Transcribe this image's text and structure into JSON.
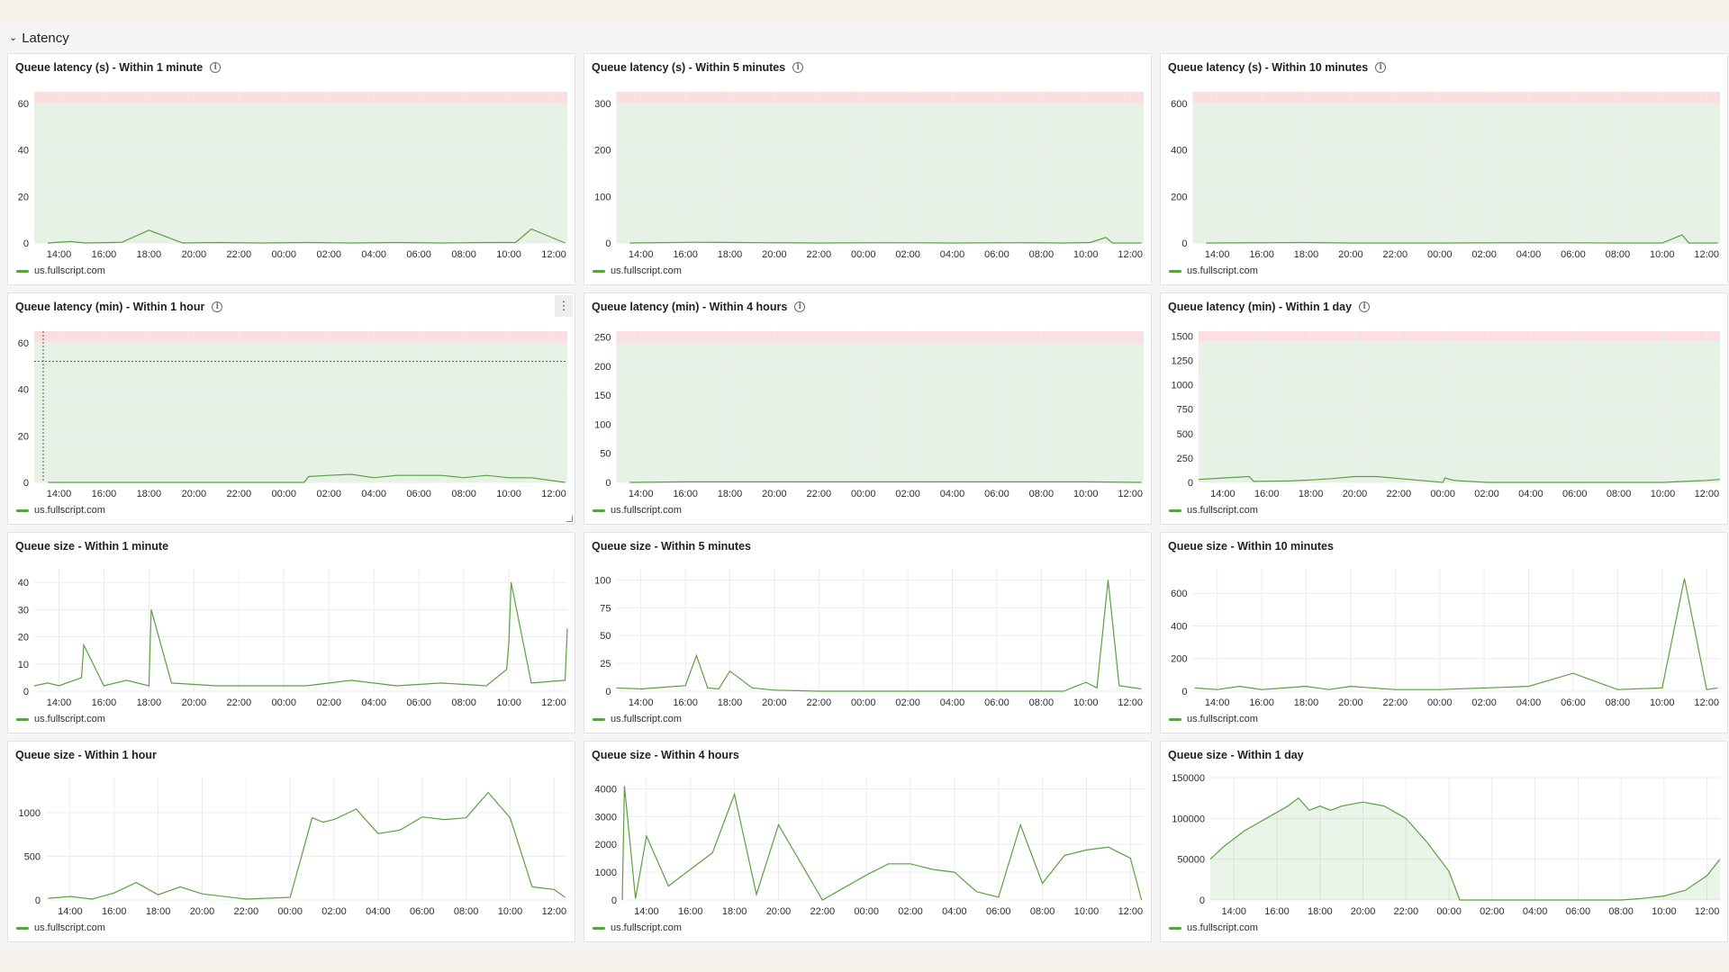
{
  "row": {
    "title": "Latency",
    "icon": "chevron-down-icon"
  },
  "colors": {
    "series": "#5aa13f",
    "threshold_ok": "#e6f2e5",
    "threshold_bad": "#fbdde2",
    "grid": "#ececee"
  },
  "x_ticks": [
    "14:00",
    "16:00",
    "18:00",
    "20:00",
    "22:00",
    "00:00",
    "02:00",
    "04:00",
    "06:00",
    "08:00",
    "10:00",
    "12:00"
  ],
  "panels": [
    {
      "title": "Queue latency (s) - Within 1 minute",
      "info": true,
      "legend": "us.fullscript.com"
    },
    {
      "title": "Queue latency (s) - Within 5 minutes",
      "info": true,
      "legend": "us.fullscript.com"
    },
    {
      "title": "Queue latency (s) - Within 10 minutes",
      "info": true,
      "legend": "us.fullscript.com"
    },
    {
      "title": "Queue latency (min) - Within 1 hour",
      "info": true,
      "legend": "us.fullscript.com"
    },
    {
      "title": "Queue latency (min) - Within 4 hours",
      "info": true,
      "legend": "us.fullscript.com"
    },
    {
      "title": "Queue latency (min) - Within 1 day",
      "info": true,
      "legend": "us.fullscript.com"
    },
    {
      "title": "Queue size - Within 1 minute",
      "info": false,
      "legend": "us.fullscript.com"
    },
    {
      "title": "Queue size - Within 5 minutes",
      "info": false,
      "legend": "us.fullscript.com"
    },
    {
      "title": "Queue size - Within 10 minutes",
      "info": false,
      "legend": "us.fullscript.com"
    },
    {
      "title": "Queue size - Within 1 hour",
      "info": false,
      "legend": "us.fullscript.com"
    },
    {
      "title": "Queue size - Within 4 hours",
      "info": false,
      "legend": "us.fullscript.com"
    },
    {
      "title": "Queue size - Within 1 day",
      "info": false,
      "legend": "us.fullscript.com"
    }
  ],
  "chart_data": [
    {
      "type": "area",
      "series": [
        {
          "name": "us.fullscript.com",
          "x": [
            13.5,
            14.5,
            15.2,
            16.8,
            18.0,
            19.5,
            21,
            23,
            25,
            27,
            29,
            31,
            33,
            34.3,
            35,
            36.5
          ],
          "y": [
            0,
            0.6,
            0,
            0.3,
            5.5,
            0,
            0.2,
            0,
            0.2,
            0,
            0.2,
            0,
            0.2,
            0.2,
            6,
            0
          ]
        }
      ],
      "ylim": [
        0,
        65
      ],
      "yticks": [
        0,
        20,
        40,
        60
      ],
      "thresholds": [
        {
          "from": 0,
          "to": 60,
          "color": "green"
        },
        {
          "from": 60,
          "to": 65,
          "color": "red"
        }
      ]
    },
    {
      "type": "area",
      "series": [
        {
          "name": "us.fullscript.com",
          "x": [
            13.5,
            16.4,
            17.8,
            19.5,
            22,
            25,
            28,
            31,
            33,
            34.2,
            34.9,
            35.2,
            36.5
          ],
          "y": [
            0,
            1.5,
            1.2,
            0.5,
            0,
            0.5,
            0,
            0.5,
            0,
            1,
            12,
            0,
            0
          ]
        }
      ],
      "ylim": [
        0,
        325
      ],
      "yticks": [
        0,
        100,
        200,
        300
      ],
      "thresholds": [
        {
          "from": 0,
          "to": 300,
          "color": "green"
        },
        {
          "from": 300,
          "to": 325,
          "color": "red"
        }
      ]
    },
    {
      "type": "area",
      "series": [
        {
          "name": "us.fullscript.com",
          "x": [
            13.5,
            16.5,
            17.9,
            20,
            24,
            28,
            32,
            34,
            34.9,
            35.2,
            36.5
          ],
          "y": [
            0,
            1,
            2,
            0,
            0,
            1,
            0,
            0,
            35,
            0,
            0
          ]
        }
      ],
      "ylim": [
        0,
        650
      ],
      "yticks": [
        0,
        200,
        400,
        600
      ],
      "thresholds": [
        {
          "from": 0,
          "to": 600,
          "color": "green"
        },
        {
          "from": 600,
          "to": 650,
          "color": "red"
        }
      ]
    },
    {
      "type": "area",
      "series": [
        {
          "name": "us.fullscript.com",
          "x": [
            13.5,
            24.9,
            25.1,
            26,
            27,
            28,
            29,
            30,
            31,
            32,
            33,
            34,
            35,
            36.5
          ],
          "y": [
            0,
            0,
            2.5,
            3,
            3.5,
            2,
            3,
            3,
            3,
            2,
            3,
            2,
            2,
            0
          ]
        }
      ],
      "ylim": [
        0,
        65
      ],
      "yticks": [
        0,
        20,
        40,
        60
      ],
      "thresholds": [
        {
          "from": 0,
          "to": 60,
          "color": "green"
        },
        {
          "from": 60,
          "to": 65,
          "color": "red"
        }
      ]
    },
    {
      "type": "area",
      "series": [
        {
          "name": "us.fullscript.com",
          "x": [
            13.5,
            16,
            18,
            20,
            22,
            24,
            26,
            28,
            30,
            32,
            34,
            36.5
          ],
          "y": [
            0,
            1,
            1,
            1,
            1,
            1,
            1,
            1,
            1,
            1,
            1,
            0
          ]
        }
      ],
      "ylim": [
        0,
        260
      ],
      "yticks": [
        0,
        50,
        100,
        150,
        200,
        250
      ],
      "thresholds": [
        {
          "from": 0,
          "to": 240,
          "color": "green"
        },
        {
          "from": 240,
          "to": 260,
          "color": "red"
        }
      ]
    },
    {
      "type": "area",
      "series": [
        {
          "name": "us.fullscript.com",
          "x": [
            12.9,
            14,
            15.2,
            15.4,
            17,
            18,
            19,
            20,
            21,
            22,
            23,
            24,
            24.1,
            24.5,
            26,
            28,
            30,
            32,
            34,
            35,
            36,
            36.6
          ],
          "y": [
            30,
            45,
            60,
            10,
            15,
            25,
            40,
            60,
            60,
            40,
            20,
            0,
            45,
            20,
            0,
            0,
            0,
            0,
            0,
            10,
            20,
            30
          ]
        }
      ],
      "ylim": [
        0,
        1550
      ],
      "yticks": [
        0,
        250,
        500,
        750,
        1000,
        1250,
        1500
      ],
      "thresholds": [
        {
          "from": 0,
          "to": 1450,
          "color": "green"
        },
        {
          "from": 1450,
          "to": 1550,
          "color": "red"
        }
      ]
    },
    {
      "type": "line",
      "series": [
        {
          "name": "us.fullscript.com",
          "x": [
            12.9,
            13.5,
            14,
            15,
            15.1,
            16,
            17,
            18,
            18.1,
            19,
            21,
            23,
            25,
            27,
            29,
            31,
            33,
            33.9,
            34,
            34.1,
            35,
            36.5,
            36.6
          ],
          "y": [
            2,
            3,
            2,
            5,
            17,
            2,
            4,
            2,
            30,
            3,
            2,
            2,
            2,
            4,
            2,
            3,
            2,
            8,
            18,
            40,
            3,
            4,
            23
          ]
        }
      ],
      "ylim": [
        0,
        45
      ],
      "yticks": [
        0,
        10,
        20,
        30,
        40
      ]
    },
    {
      "type": "line",
      "series": [
        {
          "name": "us.fullscript.com",
          "x": [
            12.9,
            14,
            16,
            16.5,
            17,
            17.5,
            18,
            19,
            20,
            22,
            24,
            26,
            28,
            30,
            33,
            34,
            34.5,
            35,
            35.5,
            36.5
          ],
          "y": [
            3,
            2,
            5,
            32,
            3,
            2,
            18,
            3,
            1,
            0,
            0,
            0,
            0,
            0,
            0,
            8,
            3,
            100,
            5,
            2
          ]
        }
      ],
      "ylim": [
        0,
        110
      ],
      "yticks": [
        0,
        25,
        50,
        75,
        100
      ]
    },
    {
      "type": "line",
      "series": [
        {
          "name": "us.fullscript.com",
          "x": [
            13,
            14,
            15,
            16,
            17,
            18,
            19,
            20,
            22,
            24,
            26,
            28,
            30,
            32,
            34,
            35,
            36,
            36.5
          ],
          "y": [
            20,
            10,
            30,
            10,
            20,
            30,
            10,
            30,
            10,
            10,
            20,
            30,
            110,
            10,
            20,
            690,
            10,
            20
          ]
        }
      ],
      "ylim": [
        0,
        750
      ],
      "yticks": [
        0,
        200,
        400,
        600
      ]
    },
    {
      "type": "line",
      "series": [
        {
          "name": "us.fullscript.com",
          "x": [
            13,
            14,
            15,
            16,
            17,
            18,
            19,
            20,
            22,
            24,
            25,
            25.5,
            26,
            27,
            28,
            29,
            30,
            31,
            32,
            33,
            34,
            35,
            36,
            36.5
          ],
          "y": [
            20,
            40,
            10,
            80,
            200,
            60,
            150,
            70,
            10,
            30,
            940,
            890,
            920,
            1040,
            760,
            800,
            950,
            920,
            940,
            1230,
            940,
            150,
            120,
            30
          ]
        }
      ],
      "ylim": [
        0,
        1400
      ],
      "yticks": [
        0,
        500,
        1000
      ]
    },
    {
      "type": "line",
      "series": [
        {
          "name": "us.fullscript.com",
          "x": [
            12.9,
            13,
            13.5,
            14,
            15,
            16,
            17,
            18,
            19,
            20,
            22,
            24,
            25,
            26,
            27,
            28,
            29,
            30,
            31,
            32,
            33,
            34,
            35,
            36,
            36.5
          ],
          "y": [
            0,
            4100,
            50,
            2300,
            500,
            1100,
            1700,
            3800,
            200,
            2700,
            0,
            900,
            1300,
            1300,
            1100,
            1000,
            300,
            100,
            2700,
            600,
            1600,
            1800,
            1900,
            1500,
            0
          ]
        }
      ],
      "ylim": [
        0,
        4400
      ],
      "yticks": [
        0,
        1000,
        2000,
        3000,
        4000
      ]
    },
    {
      "type": "area",
      "series": [
        {
          "name": "us.fullscript.com",
          "x": [
            12.9,
            13.5,
            14.5,
            15.5,
            16.5,
            17,
            17.5,
            18,
            18.5,
            19,
            20,
            21,
            22,
            23,
            24,
            24.5,
            25,
            26,
            28,
            30,
            32,
            33,
            34,
            35,
            36,
            36.6
          ],
          "y": [
            50000,
            65000,
            85000,
            100000,
            115000,
            125000,
            110000,
            115000,
            110000,
            115000,
            120000,
            115000,
            100000,
            70000,
            35000,
            0,
            0,
            0,
            0,
            0,
            0,
            2000,
            5000,
            12000,
            30000,
            50000
          ]
        }
      ],
      "ylim": [
        0,
        150000
      ],
      "yticks": [
        0,
        50000,
        100000,
        150000
      ]
    }
  ]
}
